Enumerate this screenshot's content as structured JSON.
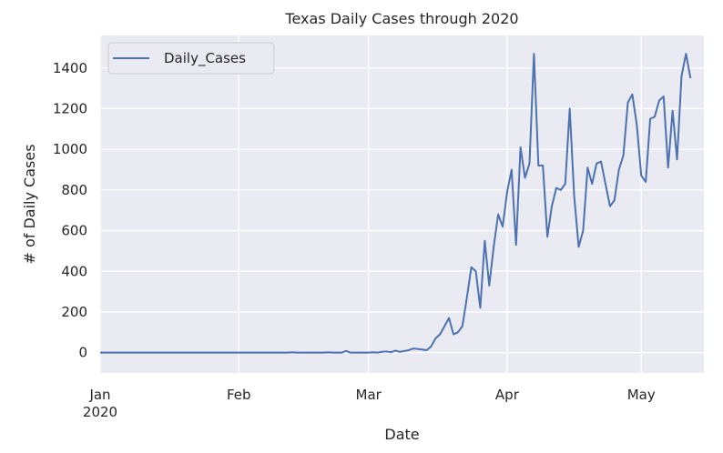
{
  "chart_data": {
    "type": "line",
    "title": "Texas Daily Cases through 2020",
    "xlabel": "Date",
    "ylabel": "# of Daily Cases",
    "x_start": "2020-01-01",
    "x_end": "2020-05-15",
    "ylim": [
      -100,
      1560
    ],
    "yticks": [
      0,
      200,
      400,
      600,
      800,
      1000,
      1200,
      1400
    ],
    "xticks": [
      {
        "date": "2020-01-01",
        "label": "Jan",
        "sublabel": "2020"
      },
      {
        "date": "2020-02-01",
        "label": "Feb",
        "sublabel": ""
      },
      {
        "date": "2020-03-01",
        "label": "Mar",
        "sublabel": ""
      },
      {
        "date": "2020-04-01",
        "label": "Apr",
        "sublabel": ""
      },
      {
        "date": "2020-05-01",
        "label": "May",
        "sublabel": ""
      }
    ],
    "grid": true,
    "legend_position": "top-left",
    "colors": {
      "line": "#4c72b0",
      "background": "#eaeaf2",
      "grid": "#ffffff"
    },
    "series": [
      {
        "name": "Daily_Cases",
        "points": [
          [
            "2020-01-01",
            0
          ],
          [
            "2020-02-12",
            0
          ],
          [
            "2020-02-13",
            2
          ],
          [
            "2020-02-14",
            0
          ],
          [
            "2020-02-20",
            0
          ],
          [
            "2020-02-21",
            2
          ],
          [
            "2020-02-22",
            0
          ],
          [
            "2020-02-24",
            0
          ],
          [
            "2020-02-25",
            8
          ],
          [
            "2020-02-26",
            0
          ],
          [
            "2020-03-01",
            0
          ],
          [
            "2020-03-02",
            2
          ],
          [
            "2020-03-03",
            0
          ],
          [
            "2020-03-04",
            4
          ],
          [
            "2020-03-05",
            6
          ],
          [
            "2020-03-06",
            2
          ],
          [
            "2020-03-07",
            10
          ],
          [
            "2020-03-08",
            4
          ],
          [
            "2020-03-09",
            8
          ],
          [
            "2020-03-10",
            12
          ],
          [
            "2020-03-11",
            20
          ],
          [
            "2020-03-12",
            18
          ],
          [
            "2020-03-13",
            15
          ],
          [
            "2020-03-14",
            12
          ],
          [
            "2020-03-15",
            30
          ],
          [
            "2020-03-16",
            70
          ],
          [
            "2020-03-17",
            90
          ],
          [
            "2020-03-18",
            130
          ],
          [
            "2020-03-19",
            170
          ],
          [
            "2020-03-20",
            90
          ],
          [
            "2020-03-21",
            100
          ],
          [
            "2020-03-22",
            130
          ],
          [
            "2020-03-23",
            270
          ],
          [
            "2020-03-24",
            420
          ],
          [
            "2020-03-25",
            400
          ],
          [
            "2020-03-26",
            220
          ],
          [
            "2020-03-27",
            550
          ],
          [
            "2020-03-28",
            330
          ],
          [
            "2020-03-29",
            520
          ],
          [
            "2020-03-30",
            680
          ],
          [
            "2020-03-31",
            620
          ],
          [
            "2020-04-01",
            790
          ],
          [
            "2020-04-02",
            900
          ],
          [
            "2020-04-03",
            530
          ],
          [
            "2020-04-04",
            1010
          ],
          [
            "2020-04-05",
            860
          ],
          [
            "2020-04-06",
            930
          ],
          [
            "2020-04-07",
            1470
          ],
          [
            "2020-04-08",
            920
          ],
          [
            "2020-04-09",
            920
          ],
          [
            "2020-04-10",
            570
          ],
          [
            "2020-04-11",
            720
          ],
          [
            "2020-04-12",
            810
          ],
          [
            "2020-04-13",
            800
          ],
          [
            "2020-04-14",
            830
          ],
          [
            "2020-04-15",
            1200
          ],
          [
            "2020-04-16",
            770
          ],
          [
            "2020-04-17",
            520
          ],
          [
            "2020-04-18",
            600
          ],
          [
            "2020-04-19",
            910
          ],
          [
            "2020-04-20",
            830
          ],
          [
            "2020-04-21",
            930
          ],
          [
            "2020-04-22",
            940
          ],
          [
            "2020-04-23",
            830
          ],
          [
            "2020-04-24",
            720
          ],
          [
            "2020-04-25",
            750
          ],
          [
            "2020-04-26",
            900
          ],
          [
            "2020-04-27",
            970
          ],
          [
            "2020-04-28",
            1230
          ],
          [
            "2020-04-29",
            1270
          ],
          [
            "2020-04-30",
            1120
          ],
          [
            "2020-05-01",
            870
          ],
          [
            "2020-05-02",
            840
          ],
          [
            "2020-05-03",
            1150
          ],
          [
            "2020-05-04",
            1160
          ],
          [
            "2020-05-05",
            1240
          ],
          [
            "2020-05-06",
            1260
          ],
          [
            "2020-05-07",
            910
          ],
          [
            "2020-05-08",
            1190
          ],
          [
            "2020-05-09",
            950
          ],
          [
            "2020-05-10",
            1360
          ],
          [
            "2020-05-11",
            1470
          ],
          [
            "2020-05-12",
            1350
          ]
        ]
      }
    ]
  }
}
